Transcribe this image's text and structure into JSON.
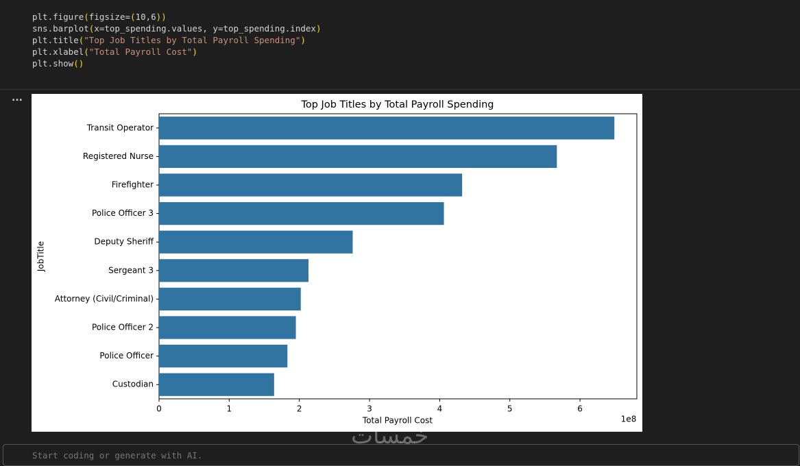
{
  "code": {
    "lines": [
      "plt.figure(figsize=(10,6))",
      "sns.barplot(x=top_spending.values, y=top_spending.index)",
      "plt.title(\"Top Job Titles by Total Payroll Spending\")",
      "plt.xlabel(\"Total Payroll Cost\")",
      "plt.show()"
    ]
  },
  "output_marker": "...",
  "chart_data": {
    "type": "barh",
    "title": "Top Job Titles by Total Payroll Spending",
    "x_label": "Total Payroll Cost",
    "y_label": "JobTitle",
    "offset_label": "1e8",
    "categories": [
      "Transit Operator",
      "Registered Nurse",
      "Firefighter",
      "Police Officer 3",
      "Deputy Sheriff",
      "Sergeant 3",
      "Attorney (Civil/Criminal)",
      "Police Officer 2",
      "Police Officer",
      "Custodian"
    ],
    "values": [
      6.49,
      5.67,
      4.32,
      4.06,
      2.76,
      2.13,
      2.02,
      1.95,
      1.83,
      1.64
    ],
    "color": "#3274a1",
    "xlim": [
      0,
      6.81
    ],
    "xticks": [
      0,
      1,
      2,
      3,
      4,
      5,
      6
    ],
    "grid": false
  },
  "new_cell_placeholder": "Start coding or generate with AI.",
  "watermark": "خمسات"
}
